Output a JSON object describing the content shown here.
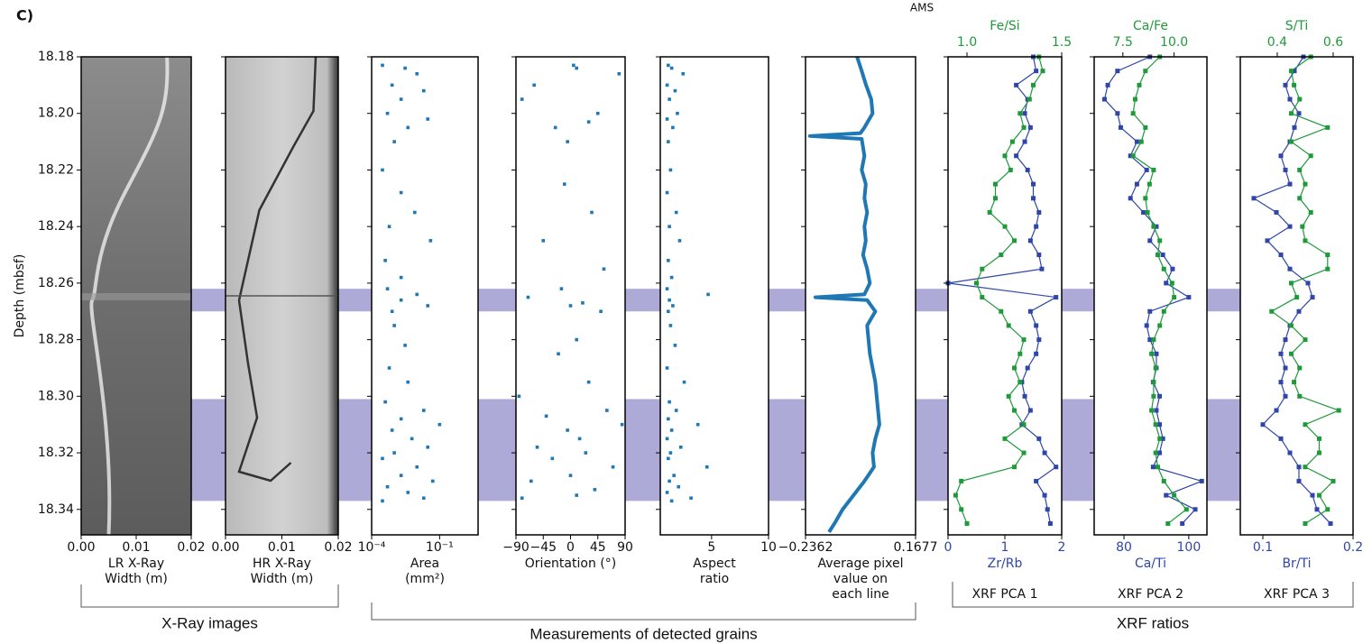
{
  "figure": {
    "panel_label": "C)",
    "ylabel": "Depth (mbsf)",
    "ylim": [
      18.18,
      18.349
    ],
    "yticks": [
      18.18,
      {
        "value": 18.2,
        "label": "18.20"
      },
      18.22,
      18.24,
      18.26,
      18.28,
      {
        "value": 18.3,
        "label": "18.30"
      },
      18.32,
      18.34
    ],
    "highlight_bands": [
      [
        18.262,
        18.27
      ],
      [
        18.301,
        18.337
      ]
    ],
    "band_color": "#aeaad8",
    "groups": [
      "X-Ray images",
      "Measurements of detected grains",
      "XRF ratios"
    ]
  },
  "chart_data": [
    {
      "type": "image",
      "xlim": [
        0,
        0.02
      ],
      "xticks": [
        {
          "value": 0,
          "label": "0.00"
        },
        0.01,
        0.02
      ],
      "xlabel": [
        "LR X-Ray",
        "Width (m)"
      ]
    },
    {
      "type": "image",
      "xlim": [
        0,
        0.02
      ],
      "xticks": [
        {
          "value": 0,
          "label": "0.00"
        },
        0.01,
        0.02
      ],
      "xlabel": [
        "HR X-Ray",
        "Width (m)"
      ]
    },
    {
      "type": "scatter",
      "color": "#1f77b4",
      "xlog": true,
      "xlim": [
        0.0001,
        5
      ],
      "xticks": [
        {
          "value": 0.0001,
          "label": "10⁻⁴"
        },
        {
          "value": 0.1,
          "label": "10⁻¹"
        }
      ],
      "xlabel": [
        "Area",
        "(mm²)"
      ],
      "x": [
        0.0003,
        0.003,
        0.01,
        0.0008,
        0.02,
        0.002,
        0.0005,
        0.03,
        0.004,
        0.001,
        0.0003,
        0.002,
        0.008,
        0.0006,
        0.04,
        0.0004,
        0.002,
        0.0005,
        0.01,
        0.002,
        0.03,
        0.0008,
        0.001,
        0.003,
        0.0006,
        0.004,
        0.0004,
        0.02,
        0.002,
        0.1,
        0.0008,
        0.006,
        0.03,
        0.001,
        0.0003,
        0.01,
        0.002,
        0.05,
        0.0005,
        0.004,
        0.02,
        0.0003
      ],
      "y": [
        18.183,
        18.184,
        18.186,
        18.19,
        18.192,
        18.195,
        18.2,
        18.202,
        18.205,
        18.21,
        18.22,
        18.228,
        18.235,
        18.24,
        18.245,
        18.252,
        18.258,
        18.262,
        18.264,
        18.266,
        18.268,
        18.27,
        18.275,
        18.282,
        18.29,
        18.295,
        18.302,
        18.305,
        18.308,
        18.31,
        18.312,
        18.315,
        18.318,
        18.32,
        18.322,
        18.325,
        18.328,
        18.33,
        18.332,
        18.334,
        18.336,
        18.337
      ]
    },
    {
      "type": "scatter",
      "color": "#1f77b4",
      "xlim": [
        -90,
        90
      ],
      "xticks": [
        {
          "value": -90,
          "label": "−90"
        },
        {
          "value": -45,
          "label": "−45"
        },
        0,
        45,
        90
      ],
      "xlabel": [
        "Orientation (°)"
      ],
      "x": [
        5,
        10,
        80,
        -60,
        -80,
        45,
        30,
        -25,
        -5,
        -10,
        35,
        -45,
        55,
        -15,
        -70,
        20,
        0,
        50,
        10,
        -20,
        30,
        -85,
        60,
        -40,
        85,
        -5,
        15,
        -55,
        25,
        -30,
        70,
        0,
        -65,
        40,
        10,
        -80
      ],
      "y": [
        18.183,
        18.184,
        18.186,
        18.19,
        18.195,
        18.2,
        18.203,
        18.205,
        18.21,
        18.225,
        18.235,
        18.245,
        18.255,
        18.262,
        18.265,
        18.267,
        18.268,
        18.27,
        18.28,
        18.285,
        18.295,
        18.3,
        18.305,
        18.307,
        18.31,
        18.312,
        18.315,
        18.318,
        18.32,
        18.322,
        18.325,
        18.328,
        18.33,
        18.333,
        18.335,
        18.336
      ]
    },
    {
      "type": "scatter",
      "color": "#1f77b4",
      "xlim": [
        0.5,
        10
      ],
      "xticks": [
        5,
        10
      ],
      "xlabel": [
        "Aspect",
        "ratio"
      ],
      "x": [
        1.2,
        1.5,
        2.5,
        1.1,
        1.8,
        1.3,
        2.0,
        1.1,
        1.6,
        1.2,
        1.4,
        1.1,
        1.9,
        1.3,
        2.2,
        1.2,
        1.5,
        1.1,
        4.7,
        1.3,
        1.6,
        1.2,
        1.4,
        1.8,
        1.1,
        2.6,
        1.3,
        1.9,
        1.2,
        3.8,
        1.5,
        1.1,
        2.3,
        1.4,
        1.2,
        4.6,
        1.7,
        1.3,
        2.1,
        1.1,
        3.2,
        1.5
      ],
      "y": [
        18.183,
        18.184,
        18.186,
        18.19,
        18.192,
        18.195,
        18.2,
        18.202,
        18.205,
        18.21,
        18.22,
        18.228,
        18.235,
        18.24,
        18.245,
        18.252,
        18.258,
        18.262,
        18.264,
        18.266,
        18.268,
        18.27,
        18.275,
        18.282,
        18.29,
        18.295,
        18.302,
        18.305,
        18.308,
        18.31,
        18.312,
        18.315,
        18.318,
        18.32,
        18.322,
        18.325,
        18.328,
        18.33,
        18.332,
        18.334,
        18.336,
        18.337
      ]
    },
    {
      "type": "profile",
      "title": "AMS",
      "color": "#1f77b4",
      "xlim": [
        -0.2362,
        0.1677
      ],
      "xticks": [
        {
          "value": -0.2362,
          "label": "−0.2362"
        },
        0.1677
      ],
      "xlabel": [
        "Average pixel",
        "value on",
        "each line"
      ],
      "depth": [
        18.18,
        18.185,
        18.19,
        18.195,
        18.2,
        18.205,
        18.207,
        18.208,
        18.209,
        18.215,
        18.22,
        18.225,
        18.23,
        18.235,
        18.24,
        18.245,
        18.25,
        18.255,
        18.26,
        18.264,
        18.265,
        18.266,
        18.27,
        18.275,
        18.28,
        18.285,
        18.29,
        18.295,
        18.3,
        18.305,
        18.31,
        18.315,
        18.32,
        18.325,
        18.33,
        18.335,
        18.34,
        18.345,
        18.348
      ],
      "values": [
        -0.047,
        -0.03,
        -0.014,
        0.005,
        0.01,
        -0.02,
        -0.035,
        -0.22,
        -0.03,
        -0.02,
        -0.03,
        -0.015,
        -0.02,
        -0.01,
        -0.02,
        -0.015,
        -0.025,
        -0.01,
        0.0,
        -0.02,
        -0.2,
        -0.01,
        0.02,
        -0.01,
        -0.005,
        0.0,
        0.01,
        0.02,
        0.025,
        0.03,
        0.035,
        0.02,
        0.01,
        0.015,
        -0.02,
        -0.06,
        -0.1,
        -0.13,
        -0.15
      ]
    },
    {
      "type": "xrf",
      "xlim": [
        0,
        2
      ],
      "xticks": [
        0,
        1,
        2
      ],
      "xlabel": [
        "Zr/Rb"
      ],
      "x2lim": [
        0.9,
        1.5
      ],
      "x2ticks": [
        {
          "value": 1,
          "label": "1.0"
        },
        1.5
      ],
      "x2label": "Fe/Si",
      "group_label": "XRF PCA 1",
      "depth": [
        18.18,
        18.185,
        18.19,
        18.195,
        18.2,
        18.205,
        18.21,
        18.215,
        18.22,
        18.225,
        18.23,
        18.235,
        18.24,
        18.245,
        18.25,
        18.255,
        18.26,
        18.265,
        18.27,
        18.275,
        18.28,
        18.285,
        18.29,
        18.295,
        18.3,
        18.305,
        18.31,
        18.315,
        18.32,
        18.325,
        18.33,
        18.335,
        18.34,
        18.345
      ],
      "series": [
        {
          "color": "#2f46a8",
          "axis": "x",
          "values": [
            1.5,
            1.55,
            1.2,
            1.4,
            1.35,
            1.45,
            1.35,
            1.2,
            1.4,
            1.5,
            1.5,
            1.6,
            1.55,
            1.45,
            1.6,
            1.65,
            0.0,
            1.9,
            1.45,
            1.55,
            1.6,
            1.55,
            1.4,
            1.3,
            1.35,
            1.45,
            1.3,
            1.6,
            1.7,
            1.9,
            1.55,
            1.7,
            1.75,
            1.8
          ]
        },
        {
          "color": "#1f9a3a",
          "axis": "x2",
          "values": [
            1.38,
            1.4,
            1.35,
            1.33,
            1.28,
            1.3,
            1.24,
            1.2,
            1.23,
            1.15,
            1.15,
            1.12,
            1.2,
            1.25,
            1.18,
            1.08,
            1.05,
            1.08,
            1.18,
            1.22,
            1.3,
            1.28,
            1.25,
            1.28,
            1.22,
            1.25,
            1.3,
            1.2,
            1.3,
            1.25,
            0.97,
            0.94,
            0.97,
            1.0
          ]
        }
      ]
    },
    {
      "type": "xrf",
      "xlim": [
        70.8,
        105.6
      ],
      "xticks": [
        80,
        100
      ],
      "xlabel": [
        "Ca/Ti"
      ],
      "x2lim": [
        6.1,
        11.6
      ],
      "x2ticks": [
        7.5,
        {
          "value": 10,
          "label": "10.0"
        }
      ],
      "x2label": "Ca/Fe",
      "group_label": "XRF PCA 2",
      "depth": [
        18.18,
        18.185,
        18.19,
        18.195,
        18.2,
        18.205,
        18.21,
        18.215,
        18.22,
        18.225,
        18.23,
        18.235,
        18.24,
        18.245,
        18.25,
        18.255,
        18.26,
        18.265,
        18.27,
        18.275,
        18.28,
        18.285,
        18.29,
        18.295,
        18.3,
        18.305,
        18.31,
        18.315,
        18.32,
        18.325,
        18.33,
        18.335,
        18.34,
        18.345
      ],
      "series": [
        {
          "color": "#2f46a8",
          "axis": "x",
          "values": [
            88,
            78,
            75,
            74,
            78,
            79,
            84,
            82,
            87,
            84,
            82,
            86,
            90,
            88,
            92,
            95,
            93,
            100,
            88,
            87,
            88,
            90,
            90,
            89,
            91,
            90,
            91,
            92,
            91,
            89,
            104,
            93,
            102,
            98
          ]
        },
        {
          "color": "#1f9a3a",
          "axis": "x2",
          "values": [
            9.3,
            8.6,
            8.3,
            8.1,
            8.0,
            8.6,
            8.4,
            8.0,
            9.0,
            8.8,
            8.6,
            8.7,
            9.0,
            9.3,
            9.2,
            9.5,
            9.9,
            10.0,
            9.5,
            9.3,
            9.0,
            8.9,
            9.1,
            9.0,
            9.0,
            8.9,
            9.1,
            9.3,
            9.1,
            9.2,
            9.5,
            10.0,
            10.6,
            9.7
          ]
        }
      ]
    },
    {
      "type": "xrf",
      "xlim": [
        0.075,
        0.2
      ],
      "xticks": [
        0.1,
        0.2
      ],
      "xlabel": [
        "Br/Ti"
      ],
      "x2lim": [
        0.268,
        0.671
      ],
      "x2ticks": [
        0.4,
        0.6
      ],
      "x2label": "S/Ti",
      "group_label": "XRF PCA 3",
      "depth": [
        18.18,
        18.185,
        18.19,
        18.195,
        18.2,
        18.205,
        18.21,
        18.215,
        18.22,
        18.225,
        18.23,
        18.235,
        18.24,
        18.245,
        18.25,
        18.255,
        18.26,
        18.265,
        18.27,
        18.275,
        18.28,
        18.285,
        18.29,
        18.295,
        18.3,
        18.305,
        18.31,
        18.315,
        18.32,
        18.325,
        18.33,
        18.335,
        18.34,
        18.345
      ],
      "series": [
        {
          "color": "#2f46a8",
          "axis": "x",
          "values": [
            0.145,
            0.135,
            0.125,
            0.13,
            0.14,
            0.135,
            0.13,
            0.12,
            0.125,
            0.13,
            0.09,
            0.115,
            0.13,
            0.105,
            0.12,
            0.13,
            0.15,
            0.155,
            0.14,
            0.13,
            0.125,
            0.12,
            0.125,
            0.12,
            0.125,
            0.115,
            0.1,
            0.12,
            0.13,
            0.14,
            0.14,
            0.155,
            0.16,
            0.175
          ]
        },
        {
          "color": "#1f9a3a",
          "axis": "x2",
          "values": [
            0.52,
            0.45,
            0.46,
            0.48,
            0.45,
            0.58,
            0.45,
            0.52,
            0.48,
            0.5,
            0.48,
            0.52,
            0.49,
            0.5,
            0.58,
            0.58,
            0.45,
            0.47,
            0.38,
            0.45,
            0.5,
            0.45,
            0.48,
            0.46,
            0.48,
            0.62,
            0.5,
            0.55,
            0.55,
            0.5,
            0.6,
            0.55,
            0.58,
            0.5
          ]
        }
      ]
    }
  ]
}
